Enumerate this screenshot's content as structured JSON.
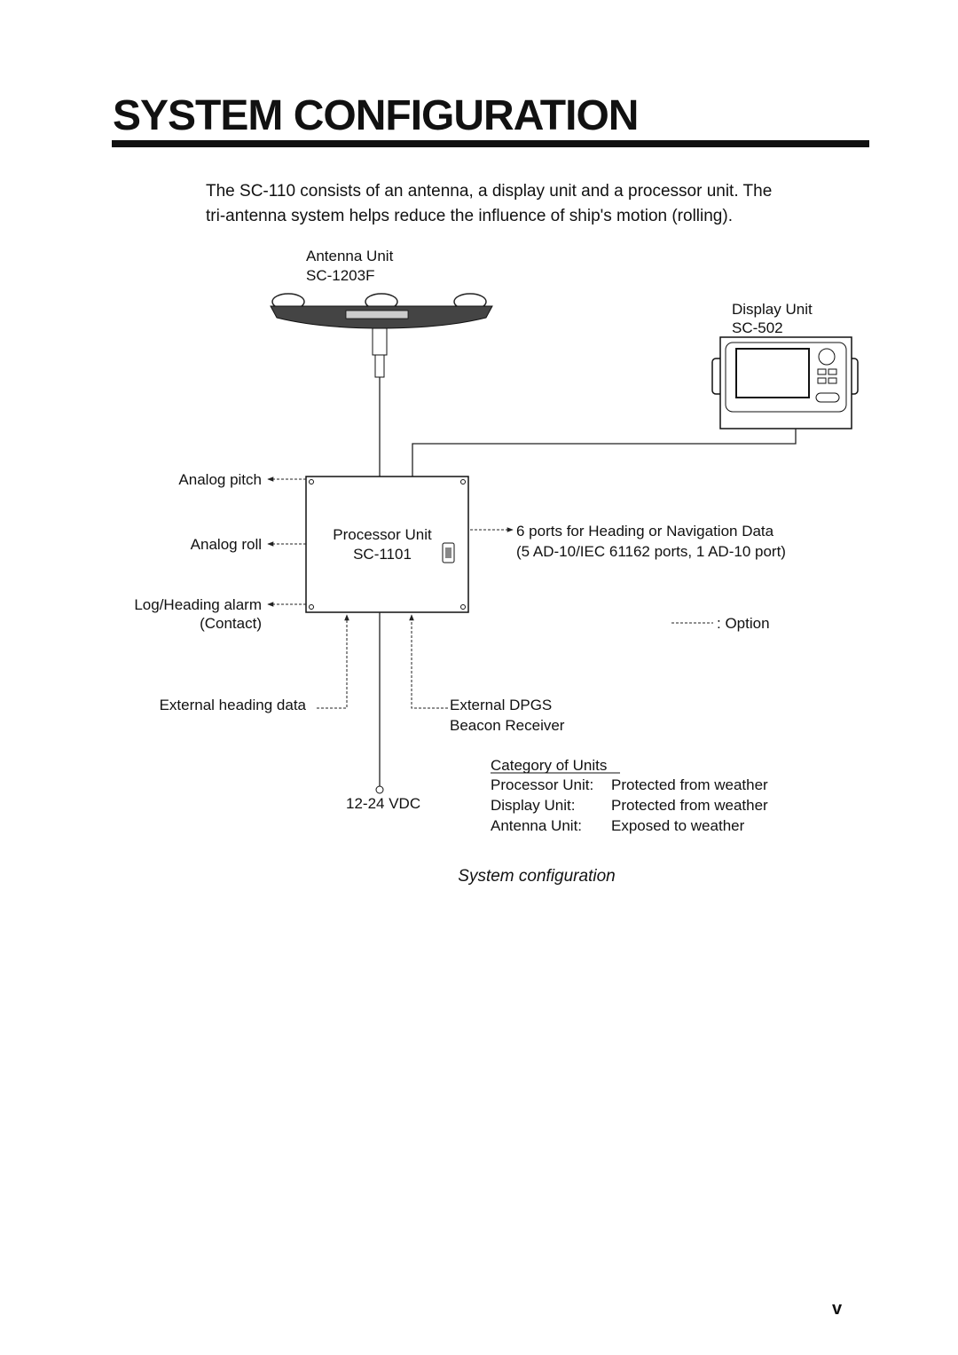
{
  "header": {
    "title": "SYSTEM CONFIGURATION"
  },
  "intro": {
    "lines": [
      "The SC-110 consists of an antenna, a display unit and a processor unit. The",
      "tri-antenna system helps reduce the influence of ship's motion (rolling)."
    ]
  },
  "diagram": {
    "antenna_unit": {
      "label": "Antenna Unit",
      "model": "SC-1203F"
    },
    "display_unit": {
      "label": "Display Unit",
      "model": "SC-502"
    },
    "processor_unit": {
      "label": "Processor Unit",
      "model": "SC-1101"
    },
    "outputs_left": {
      "pitch": "Analog pitch",
      "roll": "Analog roll",
      "alarm": "Log/Heading alarm",
      "alarm_note": "(Contact)"
    },
    "outputs_right": {
      "main": "6 ports for Heading or Navigation Data",
      "detail": "(5 AD-10/IEC 61162 ports, 1 AD-10 port)"
    },
    "legend": {
      "option": ": Option"
    },
    "inputs": {
      "heading": "External heading data",
      "dgps": "External DPGS",
      "dgps_line2": "Beacon Receiver"
    },
    "power": "12-24 VDC",
    "category": {
      "title": "Category of Units",
      "rows": [
        [
          "Processor Unit:",
          "Protected from weather"
        ],
        [
          "Display Unit:",
          "Protected from weather"
        ],
        [
          "Antenna Unit:",
          "Exposed to weather"
        ]
      ]
    }
  },
  "caption": "System configuration",
  "page_number": "v"
}
